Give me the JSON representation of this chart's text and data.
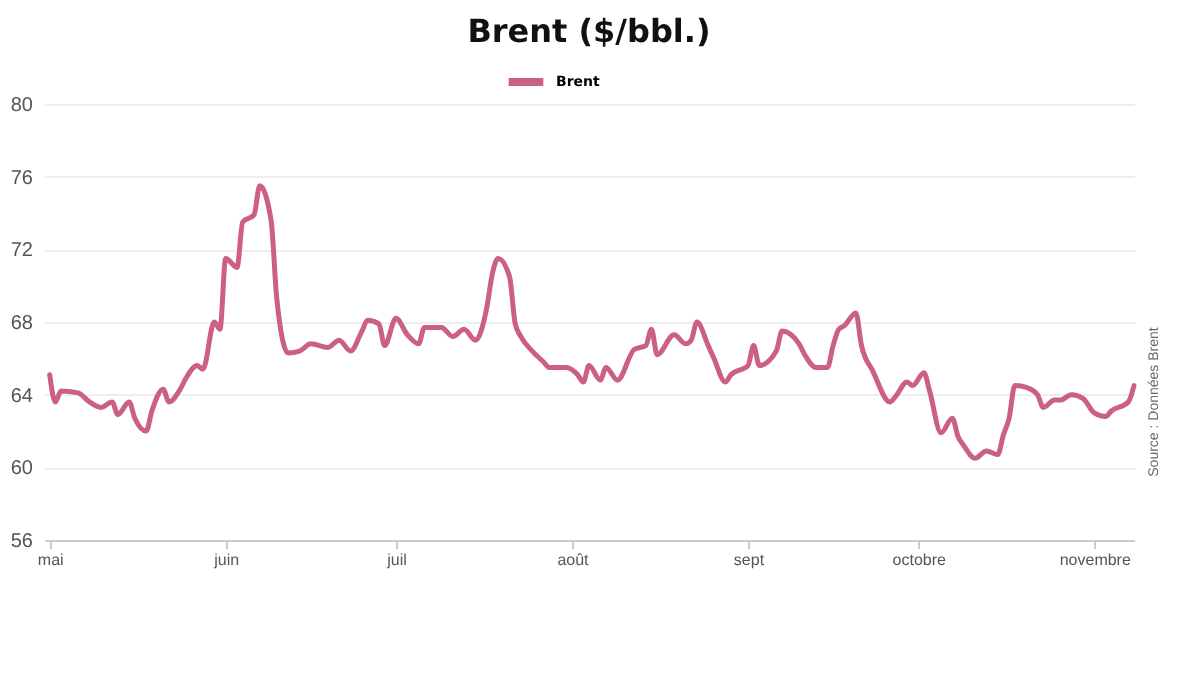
{
  "chart_data": {
    "type": "line",
    "title": "Brent ($/bbl.)",
    "x": [
      "--05-01",
      "--05-02",
      "--05-03",
      "--05-06",
      "--05-08",
      "--05-10",
      "--05-12",
      "--05-13",
      "--05-15",
      "--05-16",
      "--05-18",
      "--05-19",
      "--05-21",
      "--05-22",
      "--05-24",
      "--05-25",
      "--05-27",
      "--05-28",
      "--05-30",
      "--05-31",
      "--06-01",
      "--06-03",
      "--06-04",
      "--06-06",
      "--06-07",
      "--06-09",
      "--06-10",
      "--06-12",
      "--06-14",
      "--06-16",
      "--06-19",
      "--06-21",
      "--06-23",
      "--06-25",
      "--06-26",
      "--06-28",
      "--06-29",
      "--07-01",
      "--07-03",
      "--07-05",
      "--07-06",
      "--07-09",
      "--07-11",
      "--07-13",
      "--07-15",
      "--07-17",
      "--07-18",
      "--07-19",
      "--07-21",
      "--07-22",
      "--07-23",
      "--07-25",
      "--07-27",
      "--07-28",
      "--07-31",
      "--08-02",
      "--08-03",
      "--08-04",
      "--08-06",
      "--08-07",
      "--08-09",
      "--08-12",
      "--08-14",
      "--08-15",
      "--08-16",
      "--08-19",
      "--08-21",
      "--08-22",
      "--08-23",
      "--08-25",
      "--08-26",
      "--08-28",
      "--08-29",
      "--09-01",
      "--09-02",
      "--09-03",
      "--09-06",
      "--09-07",
      "--09-10",
      "--09-11",
      "--09-13",
      "--09-15",
      "--09-16",
      "--09-17",
      "--09-18",
      "--09-20",
      "--09-21",
      "--09-23",
      "--09-26",
      "--09-27",
      "--09-29",
      "--09-30",
      "--10-02",
      "--10-03",
      "--10-05",
      "--10-07",
      "--10-08",
      "--10-09",
      "--10-11",
      "--10-13",
      "--10-15",
      "--10-16",
      "--10-17",
      "--10-18",
      "--10-20",
      "--10-22",
      "--10-23",
      "--10-25",
      "--10-26",
      "--10-28",
      "--10-30",
      "--11-01",
      "--11-03",
      "--11-04",
      "--11-07",
      "--11-08"
    ],
    "series": [
      {
        "name": "Brent",
        "color": "#cc5f85",
        "values": [
          65.1,
          63.6,
          64.2,
          64.1,
          63.6,
          63.3,
          63.6,
          62.9,
          63.6,
          62.7,
          62.0,
          63.1,
          64.3,
          63.6,
          64.3,
          64.9,
          65.6,
          65.4,
          68.0,
          67.6,
          71.5,
          71.0,
          73.5,
          73.9,
          75.5,
          73.6,
          69.3,
          66.3,
          66.4,
          66.8,
          66.6,
          67.0,
          66.4,
          67.5,
          68.1,
          67.9,
          66.7,
          68.2,
          67.3,
          66.8,
          67.7,
          67.7,
          67.2,
          67.6,
          67.0,
          68.8,
          70.7,
          71.5,
          70.5,
          67.9,
          67.2,
          66.4,
          65.8,
          65.5,
          65.5,
          65.1,
          64.7,
          65.6,
          64.8,
          65.5,
          64.8,
          66.5,
          66.7,
          67.6,
          66.2,
          67.3,
          66.8,
          67.0,
          68.0,
          66.7,
          66.0,
          64.7,
          65.1,
          65.6,
          66.7,
          65.6,
          66.4,
          67.5,
          66.8,
          66.2,
          65.5,
          65.5,
          66.7,
          67.6,
          67.8,
          68.5,
          66.7,
          65.3,
          63.6,
          63.9,
          64.7,
          64.5,
          65.2,
          64.2,
          61.9,
          62.7,
          61.7,
          61.2,
          60.5,
          60.9,
          60.7,
          61.8,
          62.7,
          64.5,
          64.4,
          64.0,
          63.3,
          63.7,
          63.7,
          64.0,
          63.8,
          63.0,
          62.8,
          63.1,
          63.6,
          64.5
        ]
      }
    ],
    "xlim": [
      "--04-30",
      "--11-08"
    ],
    "xticks": [
      {
        "value": "--05-01",
        "label": "mai"
      },
      {
        "value": "--06-01",
        "label": "juin"
      },
      {
        "value": "--07-01",
        "label": "juil"
      },
      {
        "value": "--08-01",
        "label": "août"
      },
      {
        "value": "--09-01",
        "label": "sept"
      },
      {
        "value": "--10-01",
        "label": "octobre"
      },
      {
        "value": "--11-01",
        "label": "novembre"
      }
    ],
    "ylim": [
      56,
      80
    ],
    "yticks": [
      56,
      60,
      64,
      68,
      72,
      76,
      80
    ],
    "grid": "y",
    "legend": "top",
    "annotations": [
      "Source : Données Brent"
    ]
  }
}
